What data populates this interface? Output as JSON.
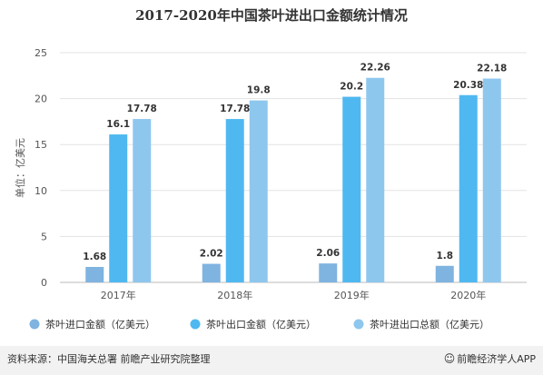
{
  "chart_data": {
    "type": "bar",
    "title": "2017-2020年中国茶叶进出口金额统计情况",
    "ylabel": "单位：亿美元",
    "xlabel": "",
    "ylim": [
      0,
      25
    ],
    "yticks": [
      "0",
      "5",
      "10",
      "15",
      "20",
      "25"
    ],
    "categories": [
      "2017年",
      "2018年",
      "2019年",
      "2020年"
    ],
    "grid": true,
    "legend_position": "bottom",
    "series": [
      {
        "name": "茶叶进口金额（亿美元）",
        "values": [
          1.68,
          2.02,
          2.06,
          1.8
        ],
        "labels": [
          "1.68",
          "2.02",
          "2.06",
          "1.8"
        ],
        "color": "#7fb3e0"
      },
      {
        "name": "茶叶出口金额（亿美元）",
        "values": [
          16.1,
          17.78,
          20.2,
          20.38
        ],
        "labels": [
          "16.1",
          "17.78",
          "20.2",
          "20.38"
        ],
        "color": "#4fb8f0"
      },
      {
        "name": "茶叶进出口总额（亿美元）",
        "values": [
          17.78,
          19.8,
          22.26,
          22.18
        ],
        "labels": [
          "17.78",
          "19.8",
          "22.26",
          "22.18"
        ],
        "color": "#8ec7ee"
      }
    ]
  },
  "footer": {
    "source": "资料来源：中国海关总署 前瞻产业研究院整理",
    "brand_icon": "brand-logo-icon",
    "brand": "前瞻经济学人APP"
  }
}
